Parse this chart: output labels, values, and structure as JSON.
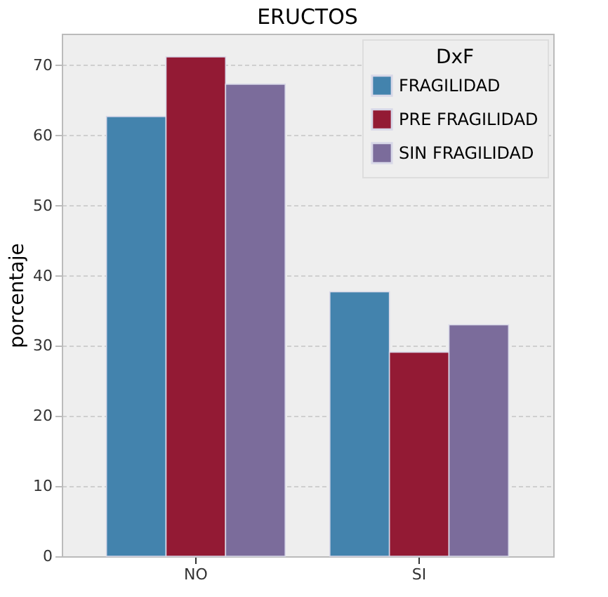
{
  "chart_data": {
    "type": "bar",
    "title": "ERUCTOS",
    "ylabel": "porcentaje",
    "legend_title": "DxF",
    "categories": [
      "NO",
      "SI"
    ],
    "series": [
      {
        "name": "FRAGILIDAD",
        "color": "#4383ad",
        "values": [
          62.7,
          37.7
        ]
      },
      {
        "name": "PRE FRAGILIDAD",
        "color": "#931a34",
        "values": [
          71.2,
          29.1
        ]
      },
      {
        "name": "SIN FRAGILIDAD",
        "color": "#7b6c9b",
        "values": [
          67.3,
          33.0
        ]
      }
    ],
    "ylim": [
      0,
      74.5
    ],
    "yticks": [
      0,
      10,
      20,
      30,
      40,
      50,
      60,
      70
    ],
    "grid": "y",
    "legend": "top right"
  }
}
